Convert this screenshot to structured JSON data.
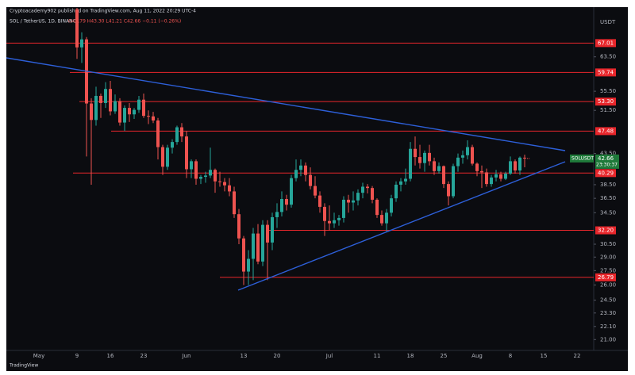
{
  "header": {
    "published": "Cryptoacademy902 published on TradingView.com, Aug 11, 2022 20:29 UTC-4",
    "footer": "TradingView"
  },
  "chart_data": {
    "type": "candlestick",
    "symbol": "SOL / TetherUS, 1D, BINANCE",
    "ohlc_readout": "O42.79 H43.30 L41.21 C42.66 −0.11 (−0.26%)",
    "currency": "USDT",
    "ticker": "SOLUSDT",
    "countdown": "23:30:37",
    "log_scale": true,
    "up_color": "#26a69a",
    "down_color": "#ef5350",
    "level_color": "#e8262b",
    "trend_color": "#2d5fd8",
    "ylim": [
      20.25,
      76.9
    ],
    "yticks": [
      {
        "value": 63.5,
        "label": "63.50"
      },
      {
        "value": 55.5,
        "label": "55.50"
      },
      {
        "value": 51.5,
        "label": "51.50"
      },
      {
        "value": 43.5,
        "label": "43.50"
      },
      {
        "value": 38.5,
        "label": "38.50"
      },
      {
        "value": 36.5,
        "label": "36.50"
      },
      {
        "value": 34.5,
        "label": "34.50"
      },
      {
        "value": 30.5,
        "label": "30.50"
      },
      {
        "value": 29,
        "label": "29.00"
      },
      {
        "value": 27.5,
        "label": "27.50"
      },
      {
        "value": 26,
        "label": "26.00"
      },
      {
        "value": 24.5,
        "label": "24.50"
      },
      {
        "value": 23.3,
        "label": "23.30"
      },
      {
        "value": 22.1,
        "label": "22.10"
      },
      {
        "value": 21,
        "label": "21.00"
      }
    ],
    "levels": [
      67.01,
      59.74,
      {
        "value": 53.3,
        "label": "53.30"
      },
      47.48,
      40.29,
      {
        "value": 32.2,
        "label": "32.20"
      },
      26.79
    ],
    "categories": [
      "May",
      null,
      null,
      null,
      null,
      null,
      null,
      null,
      "9",
      null,
      null,
      null,
      null,
      null,
      null,
      "16",
      null,
      null,
      null,
      null,
      null,
      null,
      "23",
      null,
      null,
      null,
      null,
      null,
      null,
      null,
      null,
      "Jun",
      null,
      null,
      null,
      null,
      null,
      null,
      null,
      null,
      null,
      null,
      null,
      "13",
      null,
      null,
      null,
      null,
      null,
      null,
      "20",
      null,
      null,
      null,
      null,
      null,
      null,
      null,
      null,
      null,
      null,
      "Jul",
      null,
      null,
      null,
      null,
      null,
      null,
      null,
      null,
      null,
      "11",
      null,
      null,
      null,
      null,
      null,
      null,
      "18",
      null,
      null,
      null,
      null,
      null,
      null,
      "25",
      null,
      null,
      null,
      null,
      null,
      null,
      "Aug",
      null,
      null,
      null,
      null,
      null,
      null,
      "8",
      null,
      null,
      null,
      null,
      null,
      null,
      "15",
      null,
      null,
      null,
      null,
      null,
      null,
      "22"
    ],
    "ohlc": [
      null,
      null,
      null,
      null,
      null,
      null,
      null,
      null,
      [
        76.5,
        78.0,
        63.0,
        65.9
      ],
      [
        65.9,
        69.9,
        62.0,
        68.0
      ],
      [
        68.0,
        68.6,
        43.0,
        52.9
      ],
      [
        52.9,
        54.0,
        38.5,
        49.6
      ],
      [
        49.6,
        56.5,
        48.5,
        54.5
      ],
      [
        54.5,
        55.0,
        50.0,
        53.0
      ],
      [
        53.0,
        57.5,
        52.0,
        56.0
      ],
      [
        56.0,
        57.8,
        50.5,
        51.3
      ],
      [
        51.3,
        54.8,
        50.8,
        53.4
      ],
      [
        53.4,
        54.0,
        48.5,
        49.1
      ],
      [
        49.1,
        52.5,
        47.5,
        52.0
      ],
      [
        52.0,
        53.0,
        49.2,
        50.7
      ],
      [
        50.7,
        52.0,
        49.8,
        51.6
      ],
      [
        51.6,
        54.5,
        51.0,
        53.7
      ],
      [
        53.7,
        55.0,
        50.0,
        50.4
      ],
      [
        50.4,
        51.5,
        48.8,
        50.3
      ],
      [
        50.3,
        51.2,
        49.0,
        49.5
      ],
      [
        49.5,
        50.0,
        42.5,
        44.6
      ],
      [
        44.6,
        45.0,
        40.0,
        41.3
      ],
      [
        41.3,
        45.0,
        40.8,
        44.5
      ],
      [
        44.5,
        46.0,
        43.5,
        45.5
      ],
      [
        45.5,
        48.5,
        45.0,
        48.2
      ],
      [
        48.2,
        49.0,
        45.5,
        46.5
      ],
      [
        46.5,
        47.5,
        39.5,
        40.9
      ],
      [
        40.9,
        42.5,
        39.5,
        42.2
      ],
      [
        42.2,
        42.5,
        38.5,
        39.4
      ],
      [
        39.4,
        40.0,
        38.6,
        39.7
      ],
      [
        39.7,
        40.5,
        38.8,
        39.9
      ],
      [
        39.9,
        44.5,
        39.5,
        40.8
      ],
      [
        40.8,
        41.0,
        37.3,
        39.0
      ],
      [
        39.0,
        40.5,
        38.2,
        38.9
      ],
      [
        38.9,
        39.5,
        37.5,
        38.4
      ],
      [
        38.4,
        39.5,
        36.8,
        37.5
      ],
      [
        37.5,
        38.2,
        33.8,
        34.3
      ],
      [
        34.3,
        35.0,
        30.5,
        31.2
      ],
      [
        31.2,
        31.5,
        26.0,
        27.4
      ],
      [
        27.4,
        29.8,
        26.0,
        28.8
      ],
      [
        28.8,
        32.5,
        26.5,
        31.8
      ],
      [
        31.8,
        33.0,
        28.2,
        28.5
      ],
      [
        28.5,
        33.5,
        28.0,
        32.9
      ],
      [
        32.9,
        33.5,
        26.5,
        30.7
      ],
      [
        30.7,
        34.5,
        29.8,
        33.9
      ],
      [
        33.9,
        35.8,
        32.5,
        34.6
      ],
      [
        34.6,
        37.5,
        34.0,
        36.4
      ],
      [
        36.4,
        37.0,
        34.8,
        35.6
      ],
      [
        35.6,
        40.0,
        35.2,
        39.5
      ],
      [
        39.5,
        42.5,
        39.0,
        40.8
      ],
      [
        40.8,
        42.5,
        39.8,
        41.5
      ],
      [
        41.5,
        42.0,
        39.0,
        40.0
      ],
      [
        40.0,
        41.2,
        37.8,
        38.3
      ],
      [
        38.3,
        39.8,
        36.5,
        36.9
      ],
      [
        36.9,
        37.5,
        34.5,
        35.3
      ],
      [
        35.3,
        35.8,
        31.5,
        33.4
      ],
      [
        33.4,
        35.5,
        32.2,
        33.1
      ],
      [
        33.1,
        34.5,
        32.5,
        33.5
      ],
      [
        33.5,
        34.2,
        32.8,
        33.8
      ],
      [
        33.8,
        36.8,
        33.2,
        36.3
      ],
      [
        36.3,
        37.0,
        34.5,
        35.9
      ],
      [
        35.9,
        37.5,
        34.8,
        36.2
      ],
      [
        36.2,
        37.8,
        35.5,
        37.3
      ],
      [
        37.3,
        38.8,
        36.5,
        38.2
      ],
      [
        38.2,
        38.6,
        37.2,
        38.0
      ],
      [
        38.0,
        38.3,
        35.8,
        36.3
      ],
      [
        36.3,
        36.5,
        33.8,
        34.2
      ],
      [
        34.2,
        34.8,
        32.8,
        33.1
      ],
      [
        33.1,
        35.0,
        32.0,
        34.5
      ],
      [
        34.5,
        37.0,
        34.0,
        36.5
      ],
      [
        36.5,
        39.0,
        36.0,
        38.5
      ],
      [
        38.5,
        39.5,
        37.5,
        39.0
      ],
      [
        39.0,
        41.0,
        38.5,
        39.4
      ],
      [
        39.4,
        45.5,
        39.0,
        44.3
      ],
      [
        44.3,
        46.5,
        41.5,
        42.9
      ],
      [
        42.9,
        45.0,
        41.0,
        41.9
      ],
      [
        41.9,
        44.0,
        40.5,
        43.6
      ],
      [
        43.6,
        45.0,
        41.5,
        42.2
      ],
      [
        42.2,
        42.8,
        40.0,
        40.6
      ],
      [
        40.6,
        42.0,
        40.2,
        41.4
      ],
      [
        41.4,
        41.5,
        38.0,
        38.6
      ],
      [
        38.6,
        39.0,
        35.5,
        36.8
      ],
      [
        36.8,
        41.8,
        36.5,
        41.4
      ],
      [
        41.4,
        43.5,
        40.5,
        42.8
      ],
      [
        42.8,
        44.0,
        41.8,
        43.2
      ],
      [
        43.2,
        45.8,
        42.5,
        44.6
      ],
      [
        44.6,
        45.0,
        41.5,
        41.8
      ],
      [
        41.8,
        42.0,
        39.8,
        40.6
      ],
      [
        40.6,
        41.5,
        38.0,
        40.4
      ],
      [
        40.4,
        41.0,
        38.2,
        38.6
      ],
      [
        38.6,
        40.0,
        38.2,
        39.6
      ],
      [
        39.6,
        40.8,
        39.0,
        40.1
      ],
      [
        40.1,
        40.5,
        39.0,
        39.4
      ],
      [
        39.4,
        40.5,
        39.2,
        40.2
      ],
      [
        40.2,
        43.0,
        40.0,
        42.2
      ],
      [
        42.2,
        42.5,
        40.2,
        40.7
      ],
      [
        40.7,
        43.0,
        40.0,
        42.8
      ],
      [
        42.79,
        43.3,
        41.21,
        42.66
      ],
      null,
      null,
      null,
      null,
      null,
      null,
      null,
      null,
      null,
      null,
      null
    ]
  }
}
